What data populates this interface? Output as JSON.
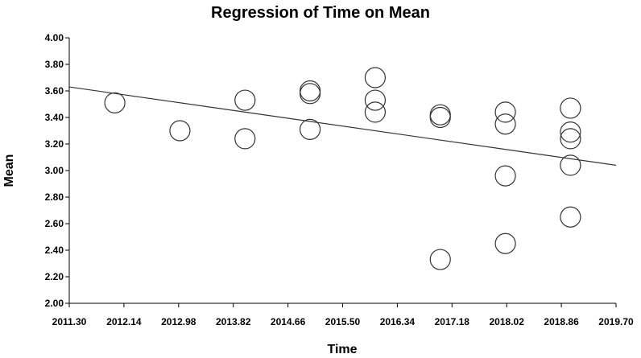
{
  "chart_data": {
    "type": "scatter",
    "title": "Regression of Time on Mean",
    "xlabel": "Time",
    "ylabel": "Mean",
    "xlim": [
      2011.3,
      2019.7
    ],
    "ylim": [
      2.0,
      4.0
    ],
    "x_ticks": [
      "2011.30",
      "2012.14",
      "2012.98",
      "2013.82",
      "2014.66",
      "2015.50",
      "2016.34",
      "2017.18",
      "2018.02",
      "2018.86",
      "2019.70"
    ],
    "y_ticks": [
      "2.00",
      "2.20",
      "2.40",
      "2.60",
      "2.80",
      "3.00",
      "3.20",
      "3.40",
      "3.60",
      "3.80",
      "4.00"
    ],
    "grid": false,
    "legend": false,
    "series": [
      {
        "points": [
          {
            "x": 2012,
            "y": 3.51
          },
          {
            "x": 2013,
            "y": 3.3
          },
          {
            "x": 2014,
            "y": 3.53
          },
          {
            "x": 2014,
            "y": 3.24
          },
          {
            "x": 2015,
            "y": 3.6
          },
          {
            "x": 2015,
            "y": 3.58
          },
          {
            "x": 2015,
            "y": 3.31
          },
          {
            "x": 2016,
            "y": 3.7
          },
          {
            "x": 2016,
            "y": 3.53
          },
          {
            "x": 2016,
            "y": 3.44
          },
          {
            "x": 2017,
            "y": 3.42
          },
          {
            "x": 2017,
            "y": 3.4
          },
          {
            "x": 2017,
            "y": 2.33
          },
          {
            "x": 2018,
            "y": 3.44
          },
          {
            "x": 2018,
            "y": 3.35
          },
          {
            "x": 2018,
            "y": 2.96
          },
          {
            "x": 2018,
            "y": 2.45
          },
          {
            "x": 2019,
            "y": 3.47
          },
          {
            "x": 2019,
            "y": 3.29
          },
          {
            "x": 2019,
            "y": 3.24
          },
          {
            "x": 2019,
            "y": 3.04
          },
          {
            "x": 2019,
            "y": 2.65
          }
        ]
      }
    ],
    "regression_line": {
      "x": [
        2011.3,
        2019.7
      ],
      "y": [
        3.63,
        3.04
      ]
    }
  }
}
